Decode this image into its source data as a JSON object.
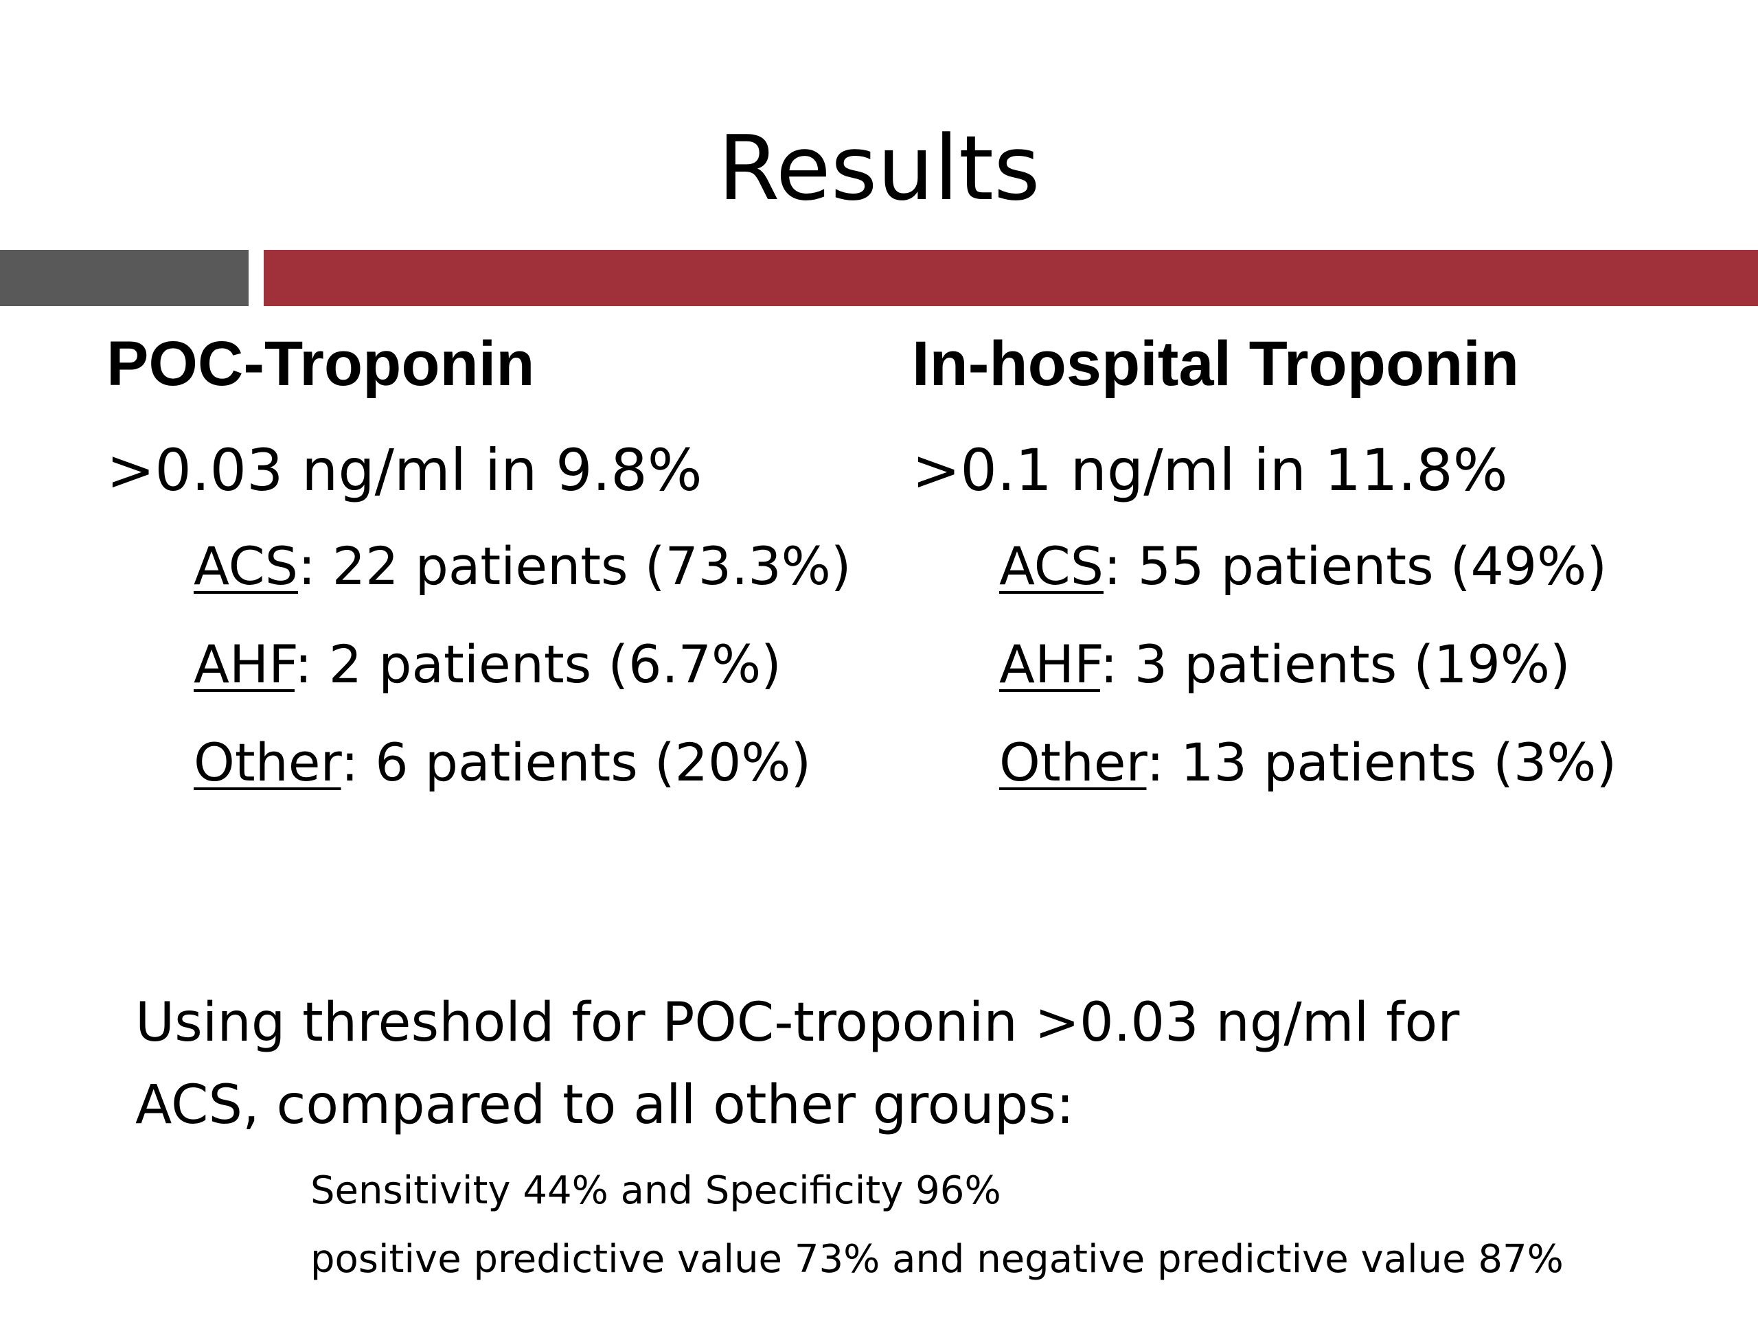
{
  "slide": {
    "title": "Results",
    "colors": {
      "accent_red": "#a0313a",
      "accent_gray": "#595959"
    }
  },
  "left": {
    "heading": "POC-Troponin",
    "subheading": ">0.03 ng/ml in 9.8%",
    "items": [
      {
        "key": "ACS",
        "text": ": 22 patients (73.3%)"
      },
      {
        "key": "AHF",
        "text": ": 2 patients (6.7%)"
      },
      {
        "key": "Other",
        "text": ": 6 patients (20%)"
      }
    ]
  },
  "right": {
    "heading": "In-hospital Troponin",
    "subheading": ">0.1 ng/ml in 11.8%",
    "items": [
      {
        "key": "ACS",
        "text": ": 55 patients (49%)"
      },
      {
        "key": "AHF",
        "text": ": 3 patients (19%)"
      },
      {
        "key": "Other",
        "text": ": 13 patients (3%)"
      }
    ]
  },
  "summary": {
    "line1": "Using threshold for POC-troponin >0.03 ng/ml for",
    "line2": "ACS, compared to all other groups:",
    "stat1": "Sensitivity 44% and Specificity 96%",
    "stat2": "positive predictive value 73% and negative predictive value 87%"
  }
}
